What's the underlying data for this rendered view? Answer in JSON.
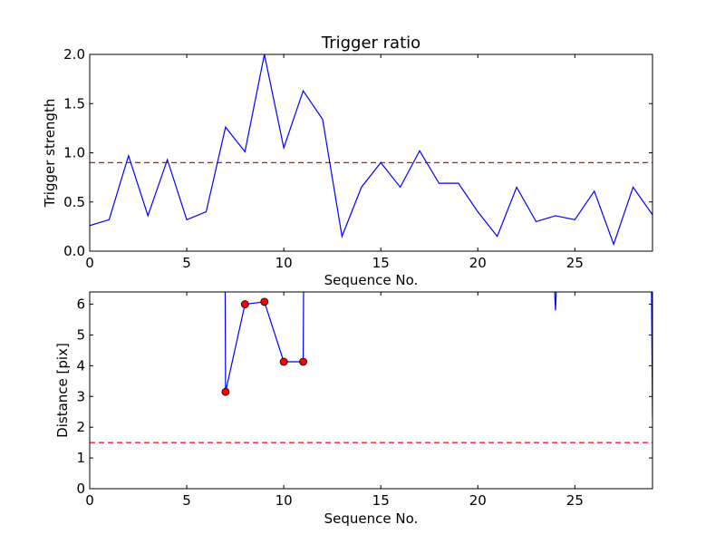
{
  "chart_data": [
    {
      "type": "line",
      "title": "Trigger ratio",
      "xlabel": "Sequence No.",
      "ylabel": "Trigger strength",
      "xlim": [
        0,
        29
      ],
      "ylim": [
        0,
        2.0
      ],
      "xticks": [
        0,
        5,
        10,
        15,
        20,
        25
      ],
      "yticks": [
        0.0,
        0.5,
        1.0,
        1.5,
        2.0
      ],
      "ytick_labels": [
        "0.0",
        "0.5",
        "1.0",
        "1.5",
        "2.0"
      ],
      "grid": false,
      "series": [
        {
          "color": "#0000ff",
          "x": [
            0,
            1,
            2,
            3,
            4,
            5,
            6,
            7,
            8,
            9,
            10,
            11,
            12,
            13,
            14,
            15,
            16,
            17,
            18,
            19,
            20,
            21,
            22,
            23,
            24,
            25,
            26,
            27,
            28,
            29
          ],
          "y": [
            0.26,
            0.32,
            0.97,
            0.36,
            0.93,
            0.32,
            0.4,
            1.26,
            1.01,
            2.0,
            1.05,
            1.63,
            1.34,
            0.15,
            0.65,
            0.9,
            0.65,
            1.02,
            0.69,
            0.69,
            0.4,
            0.15,
            0.65,
            0.3,
            0.36,
            0.32,
            0.61,
            0.07,
            0.65,
            0.37
          ]
        }
      ],
      "threshold": {
        "y": 0.9,
        "color": "#ff0000",
        "style": "dashed"
      }
    },
    {
      "type": "line",
      "xlabel": "Sequence No.",
      "ylabel": "Distance [pix]",
      "xlim": [
        0,
        29
      ],
      "ylim": [
        0,
        6.4
      ],
      "xticks": [
        0,
        5,
        10,
        15,
        20,
        25
      ],
      "yticks": [
        0,
        1,
        2,
        3,
        4,
        5,
        6
      ],
      "grid": false,
      "series": [
        {
          "color": "#0000ff",
          "x": [
            6.98,
            7,
            8,
            9,
            10,
            11,
            11.02
          ],
          "y": [
            6.4,
            3.15,
            6.0,
            6.08,
            4.13,
            4.13,
            6.4
          ]
        },
        {
          "color": "#0000ff",
          "x": [
            23.96,
            24,
            24.04
          ],
          "y": [
            6.4,
            5.8,
            6.4
          ]
        },
        {
          "color": "#0000ff",
          "x": [
            28.95,
            29
          ],
          "y": [
            6.4,
            2.3
          ]
        }
      ],
      "markers": {
        "color": "#ff0000",
        "x": [
          7,
          8,
          9,
          10,
          11
        ],
        "y": [
          3.15,
          6.0,
          6.08,
          4.13,
          4.13
        ]
      },
      "threshold": {
        "y": 1.5,
        "color": "#ff0000",
        "style": "dashed"
      }
    }
  ]
}
